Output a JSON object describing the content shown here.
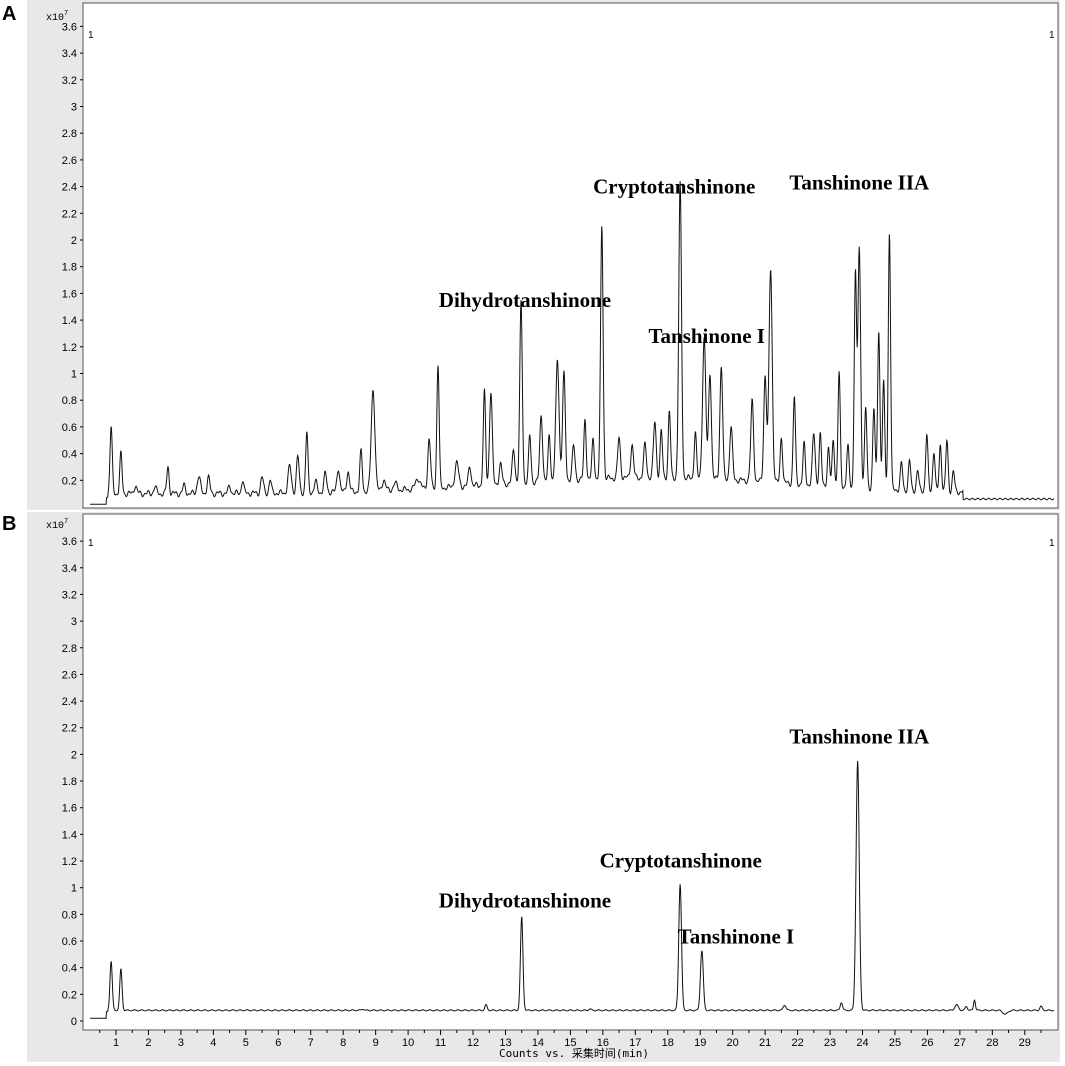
{
  "chart_data": [
    {
      "panel": "A",
      "type": "line",
      "y_multiplier_label": "x10",
      "y_multiplier_exp": "7",
      "corner_left": "1",
      "corner_right": "1",
      "yticks": [
        "0.2",
        "0.4",
        "0.6",
        "0.8",
        "1",
        "1.2",
        "1.4",
        "1.6",
        "1.8",
        "2",
        "2.2",
        "2.4",
        "2.6",
        "2.8",
        "3",
        "3.2",
        "3.4",
        "3.6"
      ],
      "ylim": [
        0,
        3.7
      ],
      "xlim": [
        0.2,
        29.9
      ],
      "xticks": [],
      "xlabel": "",
      "baseline": 0.1,
      "peaks": [
        {
          "x": 0.85,
          "h": 0.5,
          "w": 0.05
        },
        {
          "x": 1.15,
          "h": 0.3,
          "w": 0.05
        },
        {
          "x": 1.6,
          "h": 0.06,
          "w": 0.06
        },
        {
          "x": 2.2,
          "h": 0.05,
          "w": 0.06
        },
        {
          "x": 2.6,
          "h": 0.2,
          "w": 0.05
        },
        {
          "x": 3.1,
          "h": 0.06,
          "w": 0.06
        },
        {
          "x": 3.55,
          "h": 0.13,
          "w": 0.07
        },
        {
          "x": 3.85,
          "h": 0.12,
          "w": 0.06
        },
        {
          "x": 4.5,
          "h": 0.05,
          "w": 0.06
        },
        {
          "x": 4.9,
          "h": 0.1,
          "w": 0.05
        },
        {
          "x": 5.5,
          "h": 0.12,
          "w": 0.06
        },
        {
          "x": 5.75,
          "h": 0.1,
          "w": 0.05
        },
        {
          "x": 6.35,
          "h": 0.2,
          "w": 0.07
        },
        {
          "x": 6.6,
          "h": 0.27,
          "w": 0.06
        },
        {
          "x": 6.88,
          "h": 0.45,
          "w": 0.05
        },
        {
          "x": 7.15,
          "h": 0.08,
          "w": 0.06
        },
        {
          "x": 7.45,
          "h": 0.14,
          "w": 0.06
        },
        {
          "x": 7.85,
          "h": 0.18,
          "w": 0.06
        },
        {
          "x": 8.15,
          "h": 0.15,
          "w": 0.06
        },
        {
          "x": 8.55,
          "h": 0.3,
          "w": 0.05
        },
        {
          "x": 8.92,
          "h": 0.76,
          "w": 0.08
        },
        {
          "x": 9.25,
          "h": 0.08,
          "w": 0.07
        },
        {
          "x": 9.6,
          "h": 0.05,
          "w": 0.08
        },
        {
          "x": 10.3,
          "h": 0.08,
          "w": 0.1
        },
        {
          "x": 10.65,
          "h": 0.37,
          "w": 0.06
        },
        {
          "x": 10.92,
          "h": 0.93,
          "w": 0.05
        },
        {
          "x": 11.5,
          "h": 0.18,
          "w": 0.08
        },
        {
          "x": 11.9,
          "h": 0.15,
          "w": 0.06
        },
        {
          "x": 12.35,
          "h": 0.7,
          "w": 0.05
        },
        {
          "x": 12.55,
          "h": 0.7,
          "w": 0.06
        },
        {
          "x": 12.85,
          "h": 0.15,
          "w": 0.06
        },
        {
          "x": 13.25,
          "h": 0.25,
          "w": 0.06
        },
        {
          "x": 13.48,
          "h": 1.35,
          "w": 0.055
        },
        {
          "x": 13.75,
          "h": 0.35,
          "w": 0.05
        },
        {
          "x": 14.1,
          "h": 0.5,
          "w": 0.06
        },
        {
          "x": 14.35,
          "h": 0.35,
          "w": 0.05
        },
        {
          "x": 14.6,
          "h": 0.9,
          "w": 0.07
        },
        {
          "x": 14.8,
          "h": 0.8,
          "w": 0.06
        },
        {
          "x": 15.1,
          "h": 0.25,
          "w": 0.06
        },
        {
          "x": 15.45,
          "h": 0.45,
          "w": 0.05
        },
        {
          "x": 15.7,
          "h": 0.3,
          "w": 0.05
        },
        {
          "x": 15.97,
          "h": 1.9,
          "w": 0.055
        },
        {
          "x": 16.5,
          "h": 0.3,
          "w": 0.06
        },
        {
          "x": 16.9,
          "h": 0.25,
          "w": 0.06
        },
        {
          "x": 17.3,
          "h": 0.25,
          "w": 0.06
        },
        {
          "x": 17.6,
          "h": 0.42,
          "w": 0.06
        },
        {
          "x": 17.8,
          "h": 0.35,
          "w": 0.05
        },
        {
          "x": 18.05,
          "h": 0.5,
          "w": 0.05
        },
        {
          "x": 18.38,
          "h": 2.2,
          "w": 0.06
        },
        {
          "x": 18.85,
          "h": 0.35,
          "w": 0.05
        },
        {
          "x": 19.12,
          "h": 1.05,
          "w": 0.07
        },
        {
          "x": 19.3,
          "h": 0.8,
          "w": 0.06
        },
        {
          "x": 19.65,
          "h": 0.85,
          "w": 0.06
        },
        {
          "x": 19.95,
          "h": 0.4,
          "w": 0.06
        },
        {
          "x": 20.6,
          "h": 0.6,
          "w": 0.06
        },
        {
          "x": 21.0,
          "h": 0.8,
          "w": 0.06
        },
        {
          "x": 21.17,
          "h": 1.6,
          "w": 0.07
        },
        {
          "x": 21.5,
          "h": 0.35,
          "w": 0.05
        },
        {
          "x": 21.9,
          "h": 0.65,
          "w": 0.05
        },
        {
          "x": 22.2,
          "h": 0.3,
          "w": 0.05
        },
        {
          "x": 22.5,
          "h": 0.38,
          "w": 0.06
        },
        {
          "x": 22.7,
          "h": 0.38,
          "w": 0.05
        },
        {
          "x": 22.95,
          "h": 0.28,
          "w": 0.05
        },
        {
          "x": 23.1,
          "h": 0.35,
          "w": 0.05
        },
        {
          "x": 23.28,
          "h": 0.85,
          "w": 0.05
        },
        {
          "x": 23.55,
          "h": 0.3,
          "w": 0.05
        },
        {
          "x": 23.78,
          "h": 1.6,
          "w": 0.05
        },
        {
          "x": 23.9,
          "h": 1.8,
          "w": 0.06
        },
        {
          "x": 24.1,
          "h": 0.6,
          "w": 0.05
        },
        {
          "x": 24.35,
          "h": 0.6,
          "w": 0.05
        },
        {
          "x": 24.5,
          "h": 1.2,
          "w": 0.05
        },
        {
          "x": 24.65,
          "h": 0.8,
          "w": 0.05
        },
        {
          "x": 24.83,
          "h": 1.93,
          "w": 0.05
        },
        {
          "x": 25.2,
          "h": 0.2,
          "w": 0.05
        },
        {
          "x": 25.45,
          "h": 0.22,
          "w": 0.05
        },
        {
          "x": 25.7,
          "h": 0.15,
          "w": 0.05
        },
        {
          "x": 25.98,
          "h": 0.42,
          "w": 0.05
        },
        {
          "x": 26.2,
          "h": 0.3,
          "w": 0.05
        },
        {
          "x": 26.4,
          "h": 0.35,
          "w": 0.05
        },
        {
          "x": 26.6,
          "h": 0.38,
          "w": 0.05
        },
        {
          "x": 26.8,
          "h": 0.15,
          "w": 0.05
        }
      ],
      "tail_start": 27.1,
      "tail_level": 0.06,
      "annotations": [
        {
          "text": "Dihydrotanshinone",
          "x": 13.6,
          "y": 1.5
        },
        {
          "text": "Cryptotanshinone",
          "x": 18.2,
          "y": 2.35
        },
        {
          "text": "Tanshinone I",
          "x": 19.2,
          "y": 1.23
        },
        {
          "text": "Tanshinone IIA",
          "x": 23.9,
          "y": 2.38
        }
      ]
    },
    {
      "panel": "B",
      "type": "line",
      "y_multiplier_label": "x10",
      "y_multiplier_exp": "7",
      "corner_left": "1",
      "corner_right": "1",
      "yticks": [
        "0",
        "0.2",
        "0.4",
        "0.6",
        "0.8",
        "1",
        "1.2",
        "1.4",
        "1.6",
        "1.8",
        "2",
        "2.2",
        "2.4",
        "2.6",
        "2.8",
        "3",
        "3.2",
        "3.4",
        "3.6"
      ],
      "ylim": [
        0,
        3.7
      ],
      "xlim": [
        0.2,
        29.9
      ],
      "xticks": [
        "1",
        "2",
        "3",
        "4",
        "5",
        "6",
        "7",
        "8",
        "9",
        "10",
        "11",
        "12",
        "13",
        "14",
        "15",
        "16",
        "17",
        "18",
        "19",
        "20",
        "21",
        "22",
        "23",
        "24",
        "25",
        "26",
        "27",
        "28",
        "29"
      ],
      "xlabel": "Counts vs. 采集时间(min)",
      "baseline": 0.08,
      "peaks": [
        {
          "x": 0.85,
          "h": 0.37,
          "w": 0.05
        },
        {
          "x": 1.15,
          "h": 0.31,
          "w": 0.05
        },
        {
          "x": 8.6,
          "h": 0.01,
          "w": 0.05
        },
        {
          "x": 12.4,
          "h": 0.04,
          "w": 0.05
        },
        {
          "x": 13.5,
          "h": 0.7,
          "w": 0.055
        },
        {
          "x": 15.6,
          "h": 0.01,
          "w": 0.05
        },
        {
          "x": 18.38,
          "h": 0.95,
          "w": 0.06
        },
        {
          "x": 19.05,
          "h": 0.45,
          "w": 0.06
        },
        {
          "x": 21.6,
          "h": 0.04,
          "w": 0.06
        },
        {
          "x": 23.35,
          "h": 0.06,
          "w": 0.05
        },
        {
          "x": 23.85,
          "h": 1.87,
          "w": 0.07
        },
        {
          "x": 26.9,
          "h": 0.04,
          "w": 0.08
        },
        {
          "x": 27.2,
          "h": 0.03,
          "w": 0.05
        },
        {
          "x": 27.45,
          "h": 0.08,
          "w": 0.04
        },
        {
          "x": 29.5,
          "h": 0.03,
          "w": 0.05
        }
      ],
      "dips": [
        {
          "x": 28.4,
          "h": 0.03,
          "w": 0.1
        }
      ],
      "annotations": [
        {
          "text": "Dihydrotanshinone",
          "x": 13.6,
          "y": 0.85
        },
        {
          "text": "Cryptotanshinone",
          "x": 18.4,
          "y": 1.15
        },
        {
          "text": "Tanshinone I",
          "x": 20.1,
          "y": 0.58
        },
        {
          "text": "Tanshinone IIA",
          "x": 23.9,
          "y": 2.08
        }
      ]
    }
  ]
}
